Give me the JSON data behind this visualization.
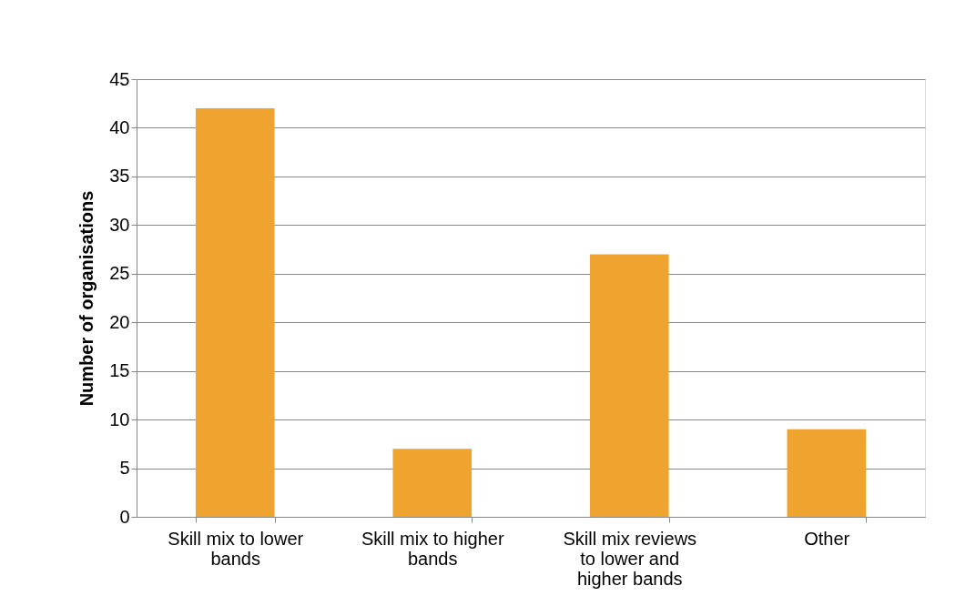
{
  "chart_data": {
    "type": "bar",
    "categories": [
      "Skill mix to lower bands",
      "Skill mix to higher bands",
      "Skill mix reviews to lower and higher bands",
      "Other"
    ],
    "values": [
      42,
      7,
      27,
      9
    ],
    "color": "#f0a430",
    "ylabel": "Number of organisations",
    "ylim": [
      0,
      45
    ],
    "yticks": [
      0,
      5,
      10,
      15,
      20,
      25,
      30,
      35,
      40,
      45
    ],
    "grid": "y"
  }
}
